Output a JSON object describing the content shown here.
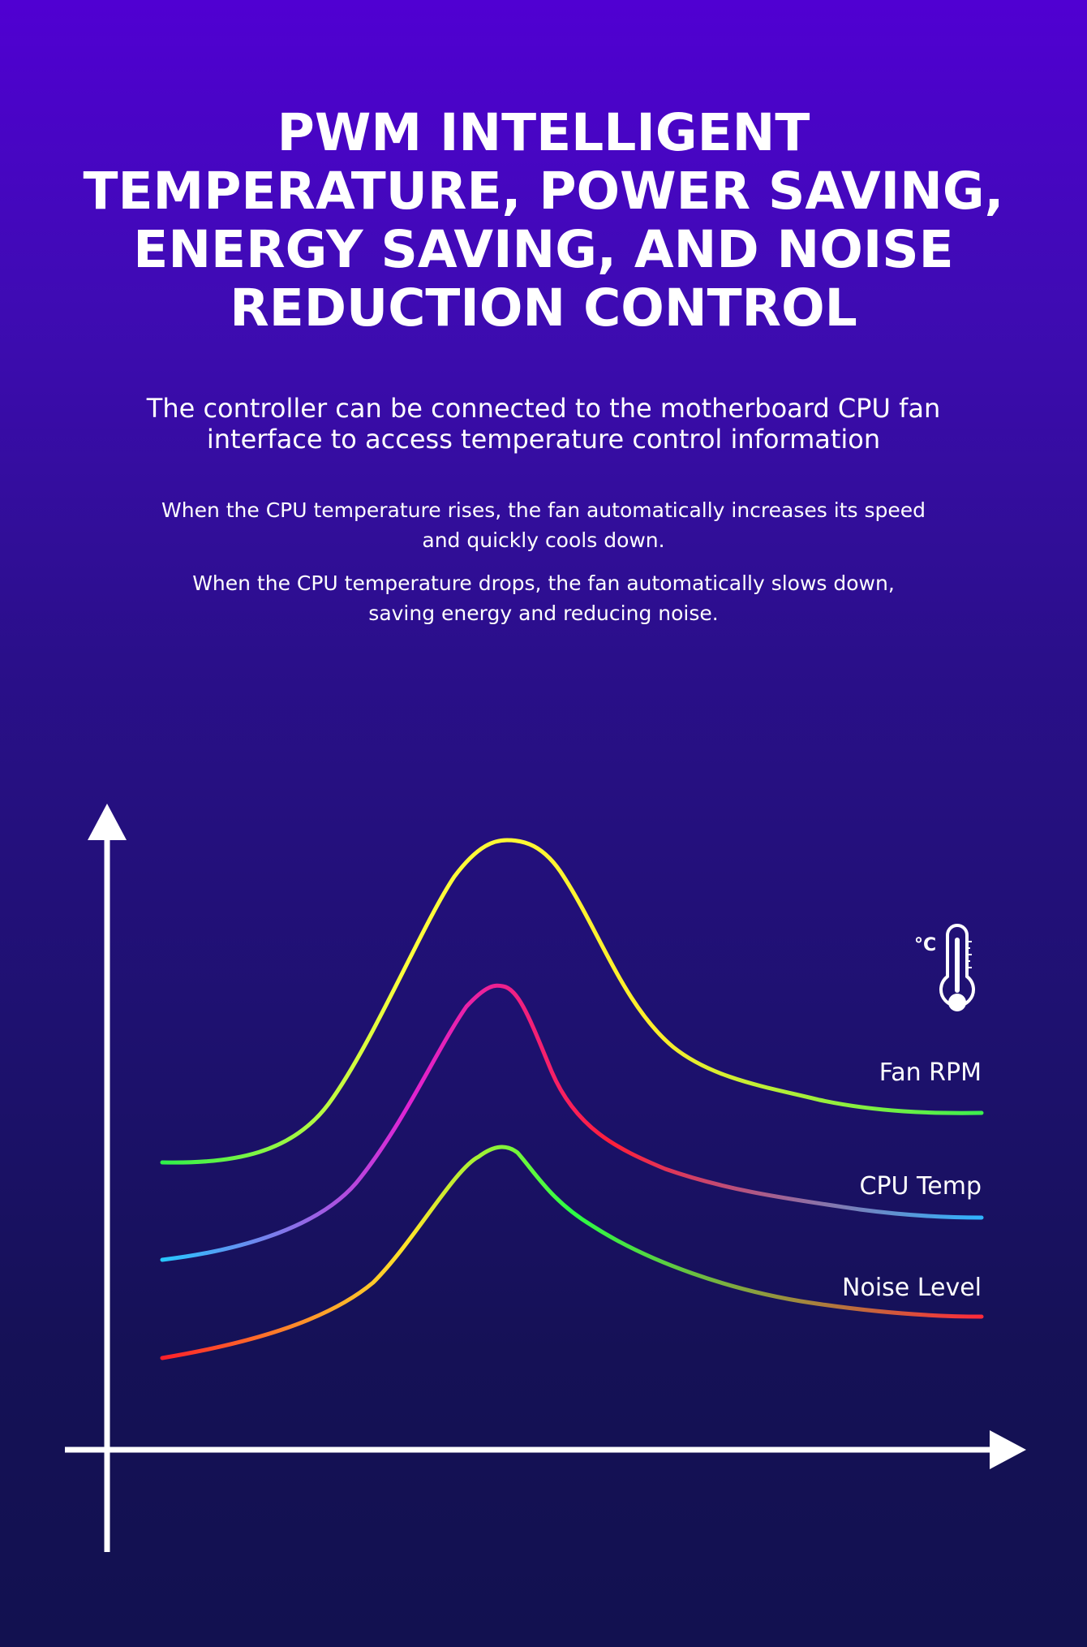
{
  "headline": {
    "lines": [
      "PWM INTELLIGENT",
      "TEMPERATURE, POWER SAVING,",
      "ENERGY SAVING, AND NOISE",
      "REDUCTION CONTROL"
    ]
  },
  "subtitle": {
    "lines": [
      "The controller can be connected to the motherboard CPU fan",
      "interface to access temperature control information"
    ]
  },
  "paragraphs": [
    {
      "lines": [
        "When the CPU temperature rises, the fan automatically increases its speed",
        "and quickly cools down."
      ]
    },
    {
      "lines": [
        "When the CPU temperature drops, the fan automatically slows down,",
        "saving energy and reducing noise."
      ]
    }
  ],
  "diagram": {
    "thermometer_unit": "°C",
    "curves": [
      {
        "label": "Fan RPM",
        "colors": [
          "#2ff04a",
          "#ffff3c",
          "#ffee2a",
          "#3cef4e"
        ]
      },
      {
        "label": "CPU Temp",
        "colors": [
          "#27c7ff",
          "#e023d4",
          "#ff1f3a",
          "#2fb4ff"
        ]
      },
      {
        "label": "Noise Level",
        "colors": [
          "#ff1f2a",
          "#ffe52a",
          "#2bff44",
          "#ff2a3a"
        ]
      }
    ],
    "axis_color": "#ffffff"
  }
}
